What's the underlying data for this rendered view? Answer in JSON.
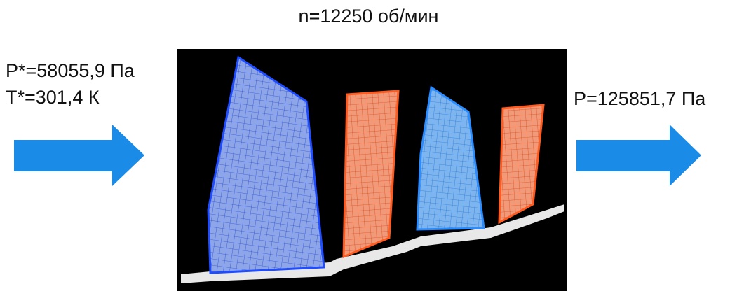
{
  "title": "n=12250 об/мин",
  "inlet": {
    "pressure": "P*=58055,9 Па",
    "temperature": "T*=301,4 К"
  },
  "outlet": {
    "pressure": "P=125851,7 Па"
  }
}
